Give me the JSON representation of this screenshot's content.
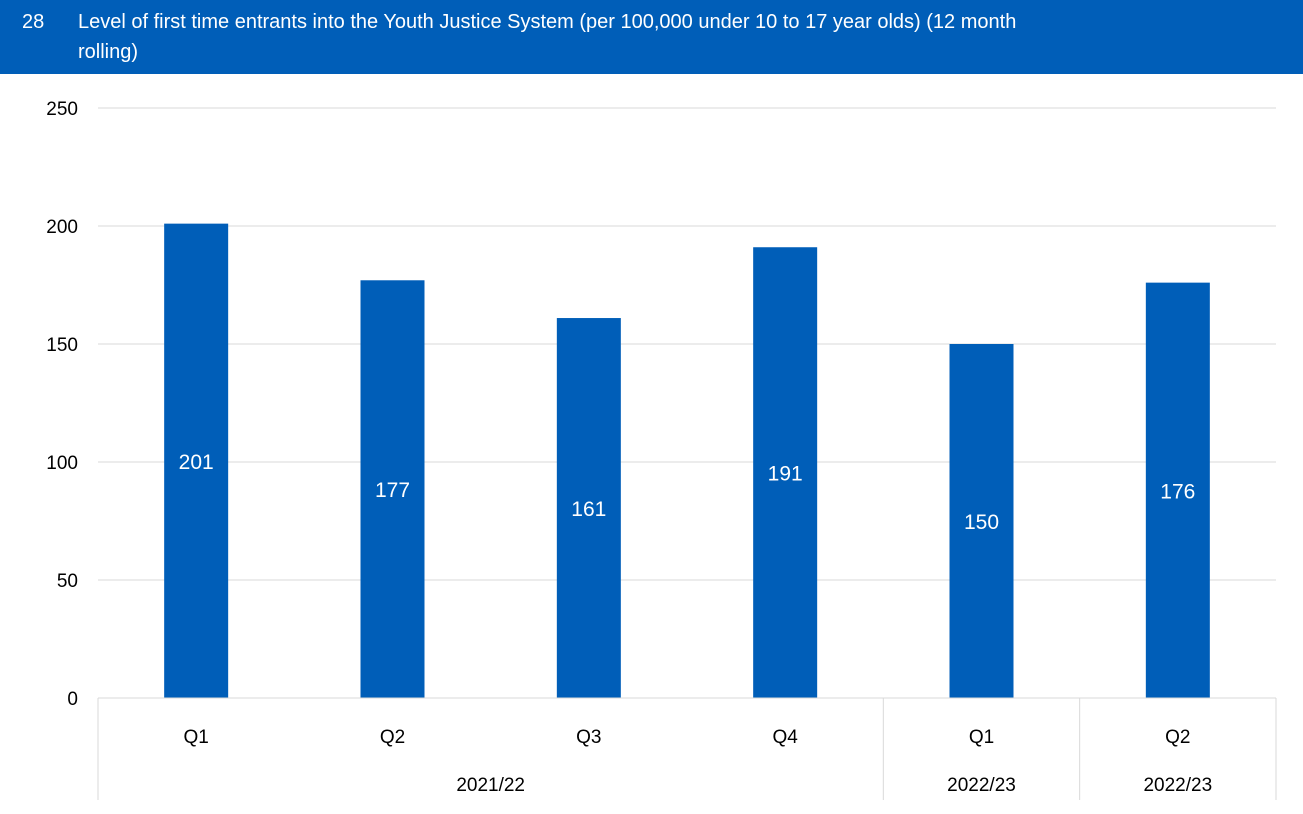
{
  "header": {
    "number": "28",
    "title": "Level of first time entrants into the Youth Justice System (per 100,000 under 10 to 17 year olds) (12 month rolling)"
  },
  "colors": {
    "bar": "#005eb8",
    "header_bg": "#005eb8",
    "grid": "#d9d9d9"
  },
  "chart_data": {
    "type": "bar",
    "title": "Level of first time entrants into the Youth Justice System (per 100,000 under 10 to 17 year olds) (12 month rolling)",
    "categories": [
      "Q1",
      "Q2",
      "Q3",
      "Q4",
      "Q1",
      "Q2"
    ],
    "groups": [
      {
        "label": "2021/22",
        "span": 4
      },
      {
        "label": "2022/23",
        "span": 1
      },
      {
        "label": "2022/23",
        "span": 1
      }
    ],
    "values": [
      201,
      177,
      161,
      191,
      150,
      176
    ],
    "yticks": [
      0,
      50,
      100,
      150,
      200,
      250
    ],
    "ylim": [
      0,
      250
    ],
    "grid": true,
    "data_labels": true
  }
}
